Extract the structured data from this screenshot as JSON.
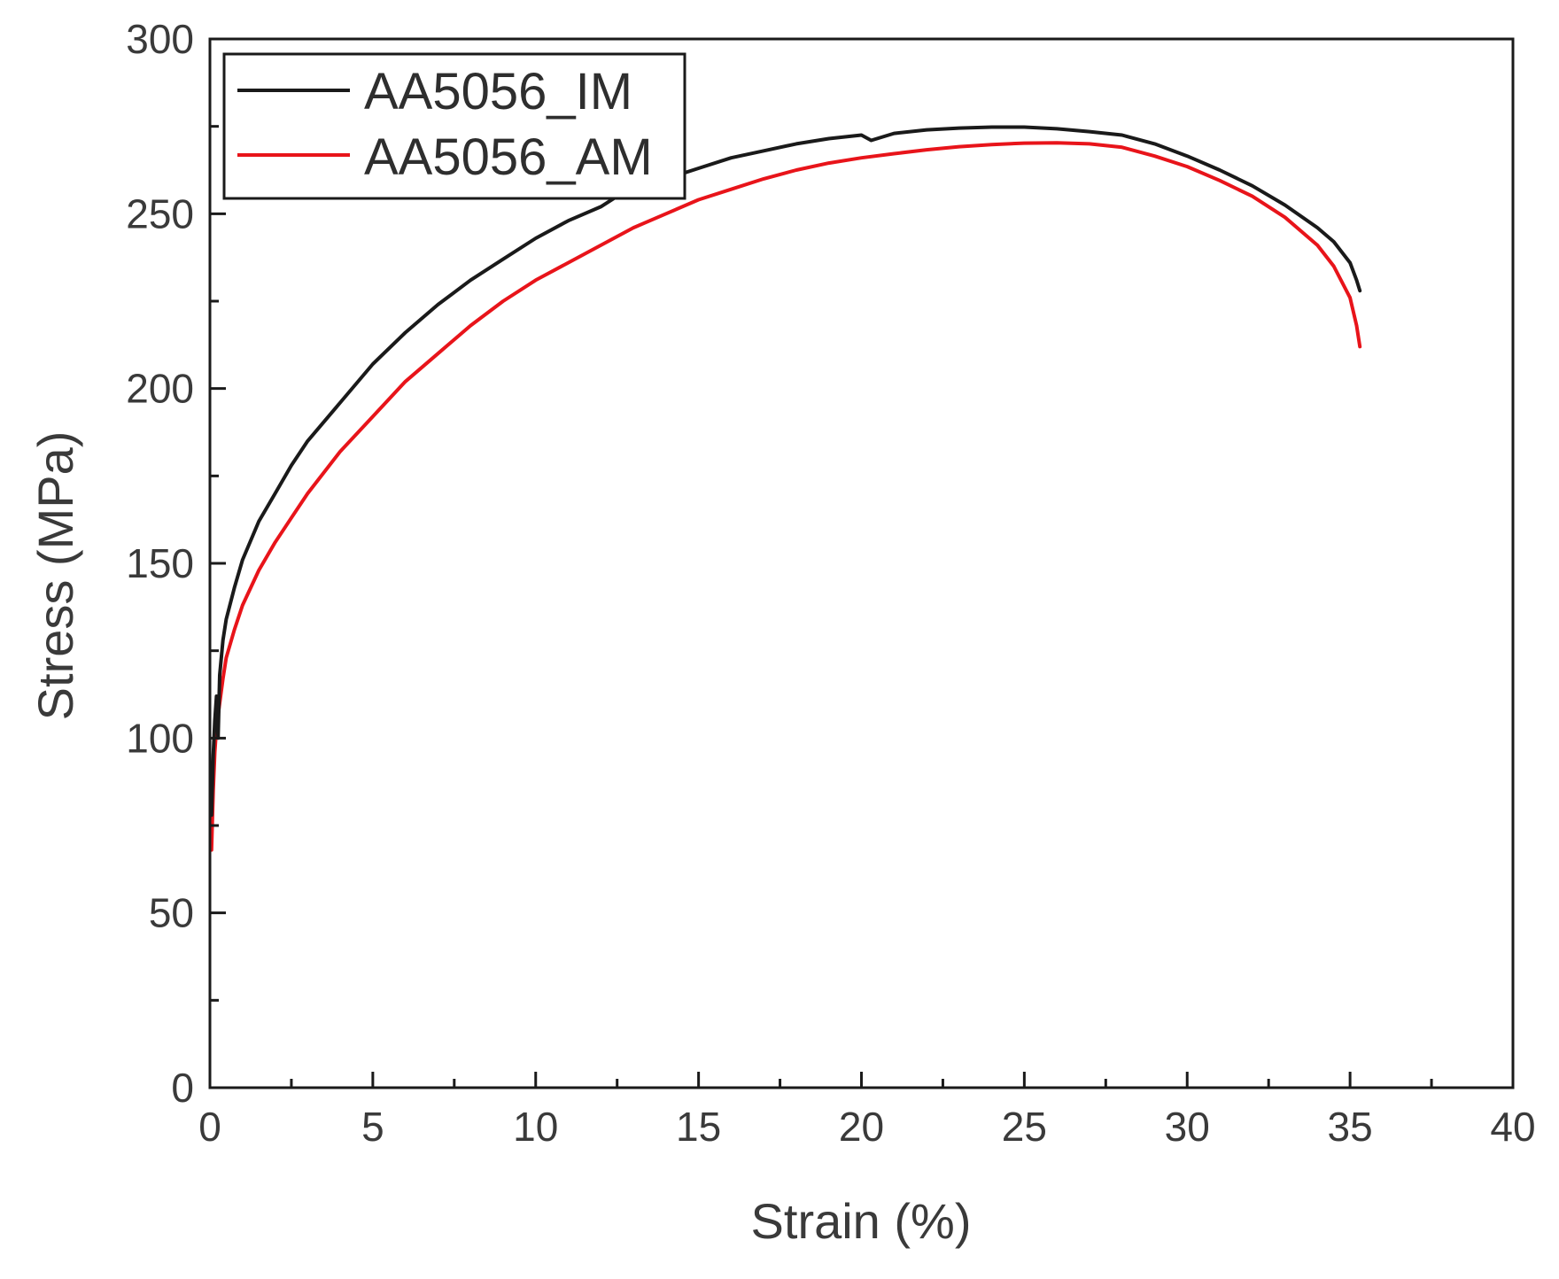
{
  "chart_data": {
    "type": "line",
    "title": "",
    "xlabel": "Strain (%)",
    "ylabel": "Stress (MPa)",
    "xlim": [
      0,
      40
    ],
    "ylim": [
      0,
      300
    ],
    "xticks": [
      0,
      5,
      10,
      15,
      20,
      25,
      30,
      35,
      40
    ],
    "yticks": [
      0,
      50,
      100,
      150,
      200,
      250,
      300
    ],
    "x_minor_step": 2.5,
    "y_minor_step": 25,
    "grid": false,
    "legend_position": "top-left",
    "series": [
      {
        "name": "AA5056_IM",
        "color": "#1a1a1a",
        "points": [
          [
            0.05,
            78
          ],
          [
            0.1,
            95
          ],
          [
            0.15,
            105
          ],
          [
            0.2,
            112
          ],
          [
            0.25,
            100
          ],
          [
            0.3,
            118
          ],
          [
            0.4,
            128
          ],
          [
            0.5,
            134
          ],
          [
            0.75,
            143
          ],
          [
            1,
            151
          ],
          [
            1.5,
            162
          ],
          [
            2,
            170
          ],
          [
            2.5,
            178
          ],
          [
            3,
            185
          ],
          [
            4,
            196
          ],
          [
            5,
            207
          ],
          [
            6,
            216
          ],
          [
            7,
            224
          ],
          [
            8,
            231
          ],
          [
            9,
            237
          ],
          [
            10,
            243
          ],
          [
            11,
            248
          ],
          [
            12,
            252
          ],
          [
            13,
            258
          ],
          [
            13.5,
            257
          ],
          [
            14,
            260
          ],
          [
            15,
            263
          ],
          [
            16,
            266
          ],
          [
            17,
            268
          ],
          [
            18,
            270
          ],
          [
            19,
            271.5
          ],
          [
            20,
            272.5
          ],
          [
            20.3,
            271
          ],
          [
            21,
            273
          ],
          [
            22,
            274
          ],
          [
            23,
            274.5
          ],
          [
            24,
            274.8
          ],
          [
            25,
            274.8
          ],
          [
            26,
            274.3
          ],
          [
            27,
            273.5
          ],
          [
            28,
            272.5
          ],
          [
            29,
            270
          ],
          [
            30,
            266.5
          ],
          [
            31,
            262.5
          ],
          [
            32,
            258
          ],
          [
            33,
            252.5
          ],
          [
            34,
            246
          ],
          [
            34.5,
            242
          ],
          [
            35,
            236
          ],
          [
            35.2,
            231
          ],
          [
            35.3,
            228
          ]
        ]
      },
      {
        "name": "AA5056_AM",
        "color": "#e8141a",
        "points": [
          [
            0.05,
            68
          ],
          [
            0.1,
            85
          ],
          [
            0.15,
            96
          ],
          [
            0.2,
            103
          ],
          [
            0.3,
            110
          ],
          [
            0.4,
            117
          ],
          [
            0.5,
            123
          ],
          [
            0.75,
            131
          ],
          [
            1,
            138
          ],
          [
            1.5,
            148
          ],
          [
            2,
            156
          ],
          [
            2.5,
            163
          ],
          [
            3,
            170
          ],
          [
            4,
            182
          ],
          [
            5,
            192
          ],
          [
            6,
            202
          ],
          [
            7,
            210
          ],
          [
            8,
            218
          ],
          [
            9,
            225
          ],
          [
            10,
            231
          ],
          [
            11,
            236
          ],
          [
            12,
            241
          ],
          [
            13,
            246
          ],
          [
            14,
            250
          ],
          [
            15,
            254
          ],
          [
            16,
            257
          ],
          [
            17,
            260
          ],
          [
            18,
            262.5
          ],
          [
            19,
            264.5
          ],
          [
            20,
            266
          ],
          [
            21,
            267.2
          ],
          [
            22,
            268.3
          ],
          [
            23,
            269.2
          ],
          [
            24,
            269.8
          ],
          [
            25,
            270.2
          ],
          [
            26,
            270.3
          ],
          [
            27,
            270
          ],
          [
            28,
            269
          ],
          [
            29,
            266.5
          ],
          [
            30,
            263.5
          ],
          [
            31,
            259.5
          ],
          [
            32,
            255
          ],
          [
            33,
            249
          ],
          [
            34,
            241
          ],
          [
            34.5,
            235
          ],
          [
            35,
            226
          ],
          [
            35.2,
            218
          ],
          [
            35.3,
            212
          ]
        ]
      }
    ]
  }
}
